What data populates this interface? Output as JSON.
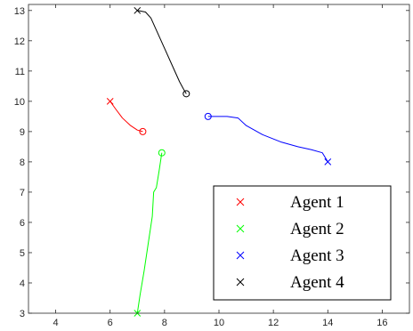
{
  "chart_data": {
    "type": "line",
    "title": "",
    "xlabel": "",
    "ylabel": "",
    "xlim": [
      3,
      17
    ],
    "ylim": [
      3,
      13.2
    ],
    "xticks": [
      4,
      6,
      8,
      10,
      12,
      14,
      16
    ],
    "yticks": [
      3,
      4,
      5,
      6,
      7,
      8,
      9,
      10,
      11,
      12,
      13
    ],
    "grid": false,
    "legend": "bottom-right",
    "start_marker": "x",
    "end_marker": "o",
    "series": [
      {
        "name": "Agent 1",
        "color": "#ff0000",
        "points": [
          [
            6.0,
            10.0
          ],
          [
            6.2,
            9.75
          ],
          [
            6.45,
            9.45
          ],
          [
            6.75,
            9.2
          ],
          [
            7.0,
            9.05
          ],
          [
            7.2,
            9.0
          ]
        ]
      },
      {
        "name": "Agent 2",
        "color": "#00ff00",
        "points": [
          [
            7.0,
            3.0
          ],
          [
            7.1,
            3.6
          ],
          [
            7.25,
            4.4
          ],
          [
            7.4,
            5.3
          ],
          [
            7.55,
            6.2
          ],
          [
            7.6,
            7.0
          ],
          [
            7.7,
            7.15
          ],
          [
            7.8,
            7.7
          ],
          [
            7.9,
            8.3
          ]
        ]
      },
      {
        "name": "Agent 3",
        "color": "#0000ff",
        "points": [
          [
            14.0,
            8.0
          ],
          [
            13.9,
            8.15
          ],
          [
            13.8,
            8.3
          ],
          [
            13.4,
            8.4
          ],
          [
            12.9,
            8.5
          ],
          [
            12.3,
            8.65
          ],
          [
            11.6,
            8.9
          ],
          [
            11.0,
            9.2
          ],
          [
            10.7,
            9.45
          ],
          [
            10.3,
            9.5
          ],
          [
            9.6,
            9.5
          ]
        ]
      },
      {
        "name": "Agent 4",
        "color": "#000000",
        "points": [
          [
            7.0,
            13.0
          ],
          [
            7.3,
            12.95
          ],
          [
            7.5,
            12.75
          ],
          [
            7.7,
            12.35
          ],
          [
            8.0,
            11.75
          ],
          [
            8.3,
            11.15
          ],
          [
            8.55,
            10.65
          ],
          [
            8.7,
            10.4
          ],
          [
            8.8,
            10.25
          ]
        ]
      }
    ]
  }
}
